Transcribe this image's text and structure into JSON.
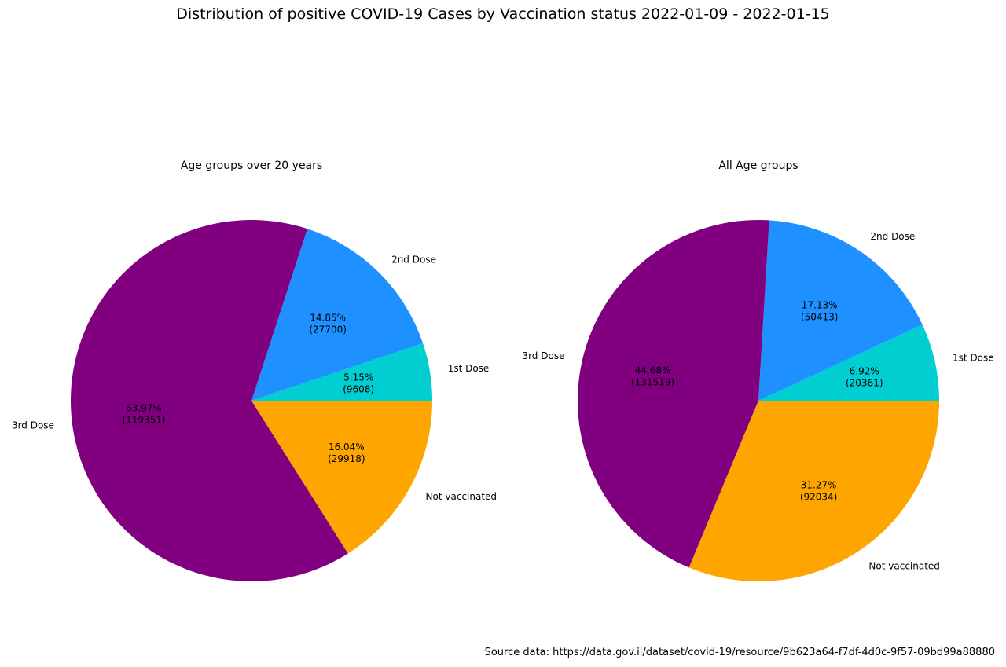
{
  "page": {
    "title": "Distribution of positive COVID-19 Cases by Vaccination status 2022-01-09 - 2022-01-15",
    "source_note": "Source data: https://data.gov.il/dataset/covid-19/resource/9b623a64-f7df-4d0c-9f57-09bd99a88880"
  },
  "palette": {
    "first_dose": "#00CED1",
    "second_dose": "#1E90FF",
    "third_dose": "#800080",
    "not_vaccinated": "#FFA500"
  },
  "chart_data": [
    {
      "type": "pie",
      "title": "Age groups over 20 years",
      "start_angle_deg": 0,
      "direction": "counterclockwise",
      "legend": "none",
      "slices": [
        {
          "label": "1st Dose",
          "percent": 5.15,
          "count": 9608,
          "color": "#00CED1"
        },
        {
          "label": "2nd Dose",
          "percent": 14.85,
          "count": 27700,
          "color": "#1E90FF"
        },
        {
          "label": "3rd Dose",
          "percent": 63.97,
          "count": 119351,
          "color": "#800080"
        },
        {
          "label": "Not vaccinated",
          "percent": 16.04,
          "count": 29918,
          "color": "#FFA500"
        }
      ]
    },
    {
      "type": "pie",
      "title": "All Age groups",
      "start_angle_deg": 0,
      "direction": "counterclockwise",
      "legend": "none",
      "slices": [
        {
          "label": "1st Dose",
          "percent": 6.92,
          "count": 20361,
          "color": "#00CED1"
        },
        {
          "label": "2nd Dose",
          "percent": 17.13,
          "count": 50413,
          "color": "#1E90FF"
        },
        {
          "label": "3rd Dose",
          "percent": 44.68,
          "count": 131519,
          "color": "#800080"
        },
        {
          "label": "Not vaccinated",
          "percent": 31.27,
          "count": 92034,
          "color": "#FFA500"
        }
      ]
    }
  ]
}
